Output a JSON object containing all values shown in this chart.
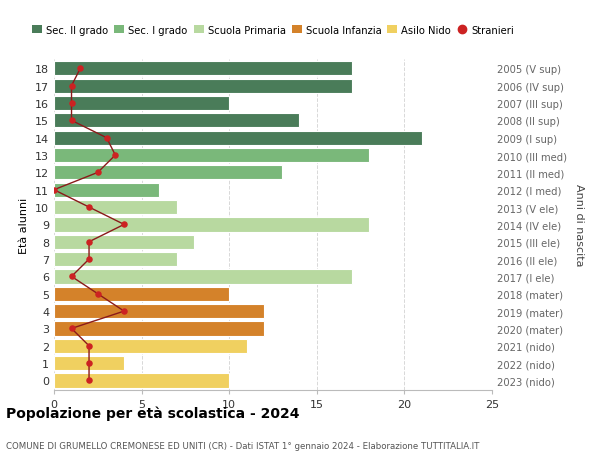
{
  "ages": [
    18,
    17,
    16,
    15,
    14,
    13,
    12,
    11,
    10,
    9,
    8,
    7,
    6,
    5,
    4,
    3,
    2,
    1,
    0
  ],
  "right_labels": [
    "2005 (V sup)",
    "2006 (IV sup)",
    "2007 (III sup)",
    "2008 (II sup)",
    "2009 (I sup)",
    "2010 (III med)",
    "2011 (II med)",
    "2012 (I med)",
    "2013 (V ele)",
    "2014 (IV ele)",
    "2015 (III ele)",
    "2016 (II ele)",
    "2017 (I ele)",
    "2018 (mater)",
    "2019 (mater)",
    "2020 (mater)",
    "2021 (nido)",
    "2022 (nido)",
    "2023 (nido)"
  ],
  "bar_values": [
    17,
    17,
    10,
    14,
    21,
    18,
    13,
    6,
    7,
    18,
    8,
    7,
    17,
    10,
    12,
    12,
    11,
    4,
    10
  ],
  "stranieri": [
    1.5,
    1,
    1,
    1,
    3,
    3.5,
    2.5,
    0,
    2,
    4,
    2,
    2,
    1,
    2.5,
    4,
    1,
    2,
    2,
    2
  ],
  "bar_colors": [
    "#4a7c59",
    "#4a7c59",
    "#4a7c59",
    "#4a7c59",
    "#4a7c59",
    "#7ab87a",
    "#7ab87a",
    "#7ab87a",
    "#b8d9a0",
    "#b8d9a0",
    "#b8d9a0",
    "#b8d9a0",
    "#b8d9a0",
    "#d4822a",
    "#d4822a",
    "#d4822a",
    "#f0d060",
    "#f0d060",
    "#f0d060"
  ],
  "legend_colors": [
    "#4a7c59",
    "#7ab87a",
    "#b8d9a0",
    "#d4822a",
    "#f0d060"
  ],
  "legend_labels": [
    "Sec. II grado",
    "Sec. I grado",
    "Scuola Primaria",
    "Scuola Infanzia",
    "Asilo Nido"
  ],
  "ylabel_left": "Età alunni",
  "ylabel_right": "Anni di nascita",
  "xlim": [
    0,
    25
  ],
  "title": "Popolazione per età scolastica - 2024",
  "subtitle": "COMUNE DI GRUMELLO CREMONESE ED UNITI (CR) - Dati ISTAT 1° gennaio 2024 - Elaborazione TUTTITALIA.IT",
  "bg_color": "#ffffff",
  "grid_color": "#d8d8d8",
  "bar_height": 0.82,
  "stranieri_line_color": "#8b1a1a",
  "stranieri_dot_color": "#cc2222"
}
